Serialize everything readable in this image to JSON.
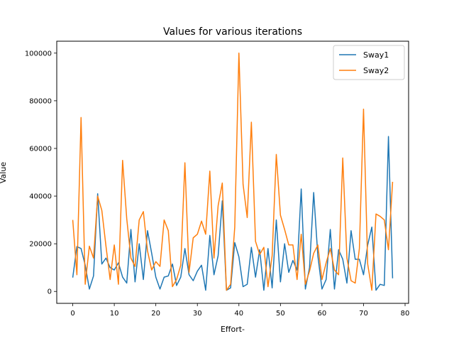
{
  "chart_data": {
    "type": "line",
    "title": "Values for various iterations",
    "xlabel": "Effort-",
    "ylabel": "Value",
    "xlim": [
      -3.85,
      80.85
    ],
    "ylim": [
      -5000,
      105000
    ],
    "xticks": [
      0,
      10,
      20,
      30,
      40,
      50,
      60,
      70,
      80
    ],
    "yticks": [
      0,
      20000,
      40000,
      60000,
      80000,
      100000
    ],
    "grid": false,
    "legend": {
      "placement": "top-right"
    },
    "colors": {
      "Sway1": "#1f77b4",
      "Sway2": "#ff7f0e"
    },
    "x": [
      0,
      1,
      2,
      3,
      4,
      5,
      6,
      7,
      8,
      9,
      10,
      11,
      12,
      13,
      14,
      15,
      16,
      17,
      18,
      19,
      20,
      21,
      22,
      23,
      24,
      25,
      26,
      27,
      28,
      29,
      30,
      31,
      32,
      33,
      34,
      35,
      36,
      37,
      38,
      39,
      40,
      41,
      42,
      43,
      44,
      45,
      46,
      47,
      48,
      49,
      50,
      51,
      52,
      53,
      54,
      55,
      56,
      57,
      58,
      59,
      60,
      61,
      62,
      63,
      64,
      65,
      66,
      67,
      68,
      69,
      70,
      71,
      72,
      73,
      74,
      75,
      76,
      77
    ],
    "series": [
      {
        "name": "Sway1",
        "values": [
          5800,
          18800,
          18000,
          11000,
          1000,
          6500,
          41000,
          11500,
          14000,
          10000,
          9000,
          12000,
          6000,
          3500,
          26000,
          4000,
          20000,
          5000,
          25500,
          16000,
          6000,
          1000,
          6000,
          6500,
          11500,
          2500,
          6000,
          18000,
          7000,
          4500,
          8500,
          11000,
          500,
          23500,
          7000,
          15000,
          38000,
          500,
          1500,
          20500,
          14500,
          2000,
          3000,
          18500,
          6000,
          17500,
          500,
          18000,
          1500,
          30000,
          4000,
          20000,
          8000,
          13000,
          9000,
          43000,
          1000,
          10000,
          41500,
          15000,
          1000,
          5000,
          26000,
          1000,
          17500,
          13500,
          3500,
          25500,
          13500,
          13500,
          7000,
          19500,
          27000,
          500,
          3000,
          2500,
          65000,
          5500
        ]
      },
      {
        "name": "Sway2",
        "values": [
          30000,
          7000,
          73000,
          3000,
          19000,
          14000,
          40000,
          34000,
          19000,
          5000,
          19500,
          3000,
          55000,
          30500,
          14000,
          10500,
          30000,
          33500,
          17000,
          9000,
          12500,
          10500,
          30000,
          25500,
          2000,
          5000,
          11000,
          54000,
          8000,
          22500,
          24000,
          29500,
          24000,
          50500,
          14000,
          36000,
          45500,
          500,
          3000,
          27000,
          100000,
          45000,
          31000,
          71000,
          21000,
          15500,
          18500,
          2000,
          15000,
          57500,
          32000,
          26000,
          19500,
          19500,
          5000,
          24000,
          3000,
          8500,
          16000,
          19500,
          5000,
          12000,
          18000,
          9000,
          7000,
          56000,
          14000,
          4500,
          3500,
          18000,
          76500,
          11500,
          500,
          32500,
          31500,
          30000,
          17500,
          46000
        ]
      }
    ]
  }
}
